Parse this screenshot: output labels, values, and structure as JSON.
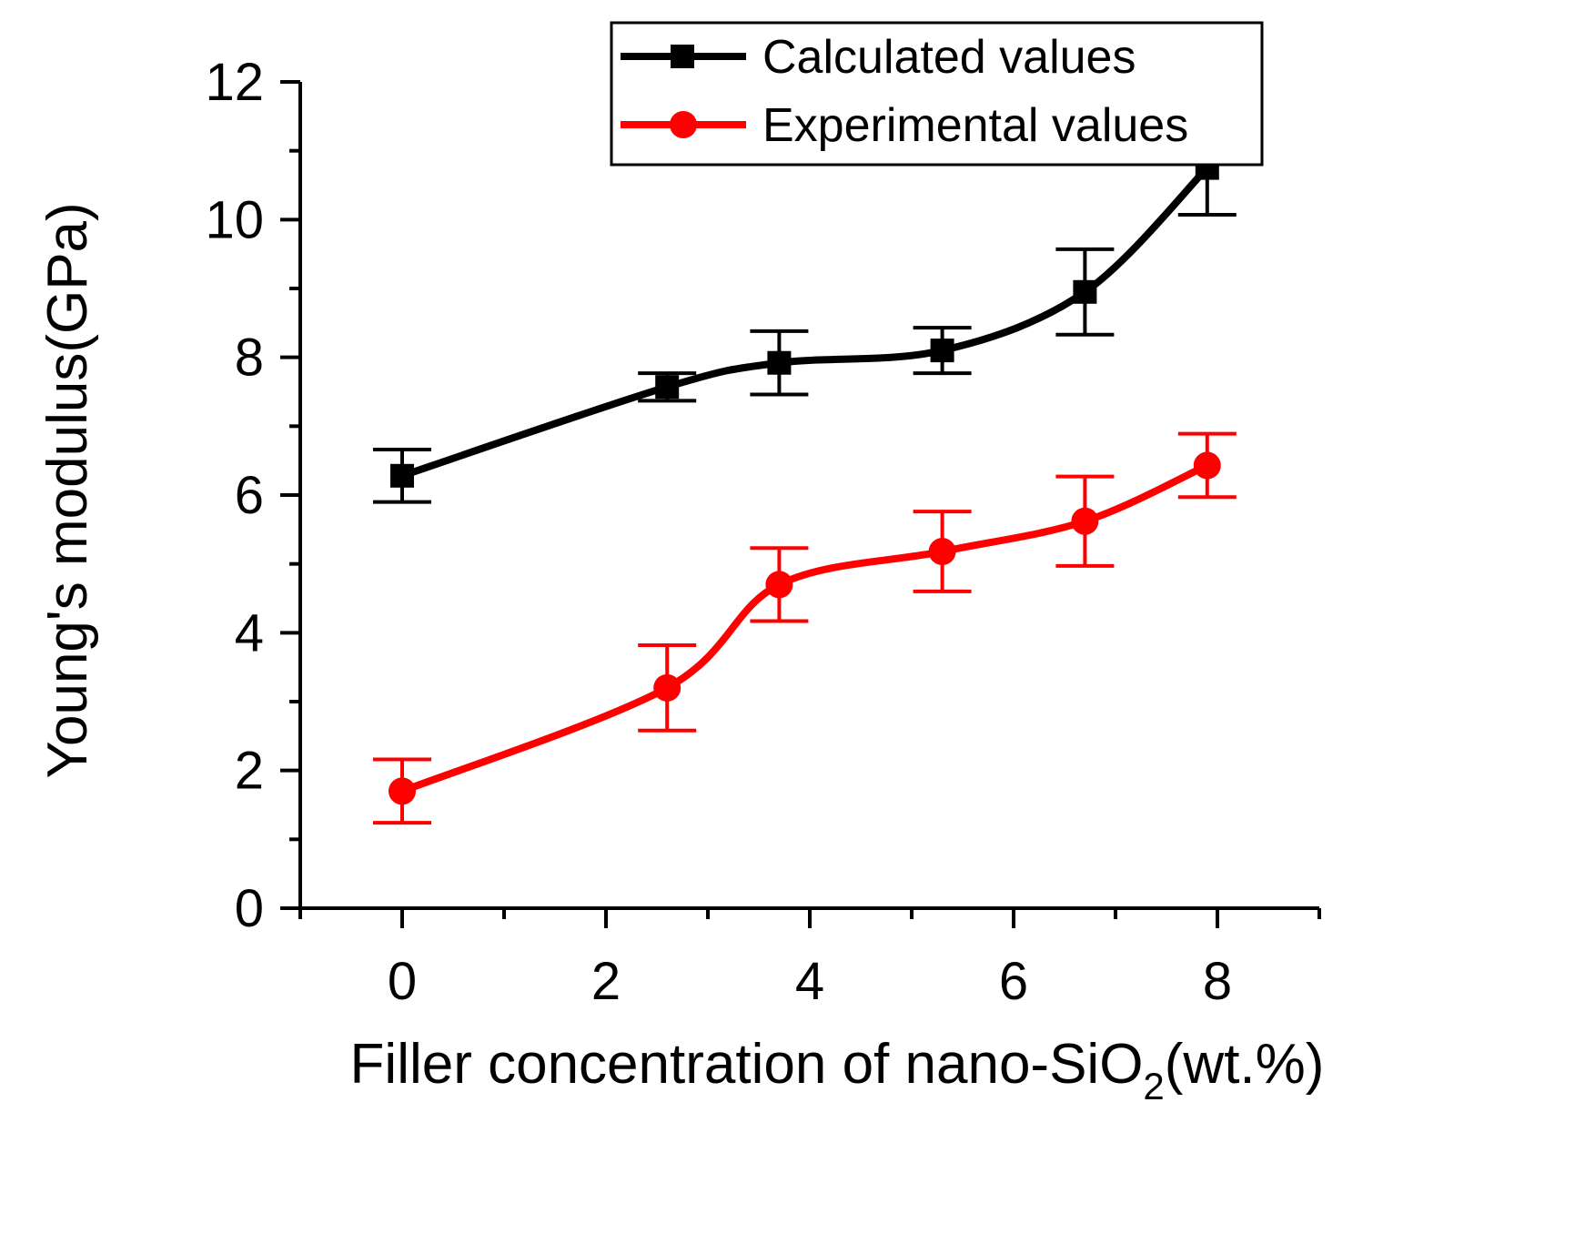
{
  "chart_data": {
    "type": "line",
    "title": "",
    "xlabel": "Filler concentration of nano-SiO",
    "xlabel_subscript": "2",
    "xlabel_suffix": "(wt.%)",
    "ylabel": "Young's modulus(GPa)",
    "xlim": [
      -1,
      9
    ],
    "ylim": [
      0,
      12
    ],
    "x_ticks": [
      0,
      2,
      4,
      6,
      8
    ],
    "y_ticks": [
      0,
      2,
      4,
      6,
      8,
      10,
      12
    ],
    "x_tick_labels": [
      "0",
      "2",
      "4",
      "6",
      "8"
    ],
    "y_tick_labels": [
      "0",
      "2",
      "4",
      "6",
      "8",
      "10",
      "12"
    ],
    "legend_position": "top-right",
    "series": [
      {
        "name": "Calculated values",
        "color": "#000000",
        "marker": "square",
        "x": [
          0,
          2.6,
          3.7,
          5.3,
          6.7,
          7.9
        ],
        "y": [
          6.28,
          7.57,
          7.92,
          8.1,
          8.95,
          10.75
        ],
        "err": [
          0.38,
          0.2,
          0.46,
          0.33,
          0.62,
          0.68
        ]
      },
      {
        "name": "Experimental values",
        "color": "#ff0000",
        "marker": "circle",
        "x": [
          0,
          2.6,
          3.7,
          5.3,
          6.7,
          7.9
        ],
        "y": [
          1.7,
          3.2,
          4.7,
          5.18,
          5.62,
          6.43
        ],
        "err": [
          0.46,
          0.62,
          0.53,
          0.58,
          0.65,
          0.46
        ]
      }
    ]
  }
}
